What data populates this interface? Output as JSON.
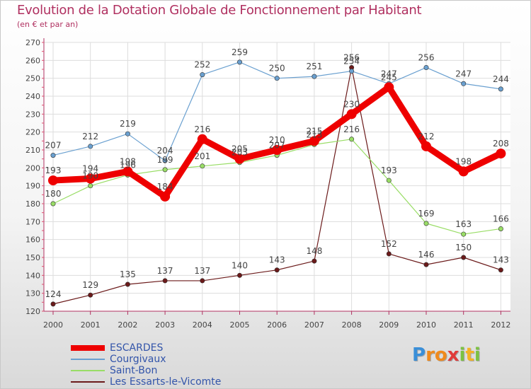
{
  "header": {
    "title": "Evolution de la Dotation Globale de Fonctionnement par Habitant",
    "subtitle": "(en € et par an)"
  },
  "logo": {
    "letters": [
      "P",
      "r",
      "o",
      "x",
      "i",
      "t",
      "i"
    ],
    "colors": [
      "#3a8fd8",
      "#f08a1c",
      "#f08a1c",
      "#e03a3a",
      "#7cc242",
      "#f5b324",
      "#7cc242"
    ]
  },
  "chart_data": {
    "type": "line",
    "title": "Evolution de la Dotation Globale de Fonctionnement par Habitant",
    "subtitle": "(en € et par an)",
    "xlabel": "",
    "ylabel": "",
    "categories": [
      "2000",
      "2001",
      "2002",
      "2003",
      "2004",
      "2005",
      "2006",
      "2007",
      "2008",
      "2009",
      "2010",
      "2011",
      "2012"
    ],
    "ylim": [
      120,
      270
    ],
    "yticks": [
      120,
      130,
      140,
      150,
      160,
      170,
      180,
      190,
      200,
      210,
      220,
      230,
      240,
      250,
      260,
      270
    ],
    "grid": true,
    "legend_position": "bottom-left",
    "series": [
      {
        "name": "ESCARDES",
        "color": "#ee0000",
        "values": [
          193,
          194,
          198,
          184,
          216,
          205,
          210,
          215,
          230,
          245,
          212,
          198,
          208
        ]
      },
      {
        "name": "Courgivaux",
        "color": "#6aa0d0",
        "values": [
          207,
          212,
          219,
          204,
          252,
          259,
          250,
          251,
          254,
          247,
          256,
          247,
          244
        ]
      },
      {
        "name": "Saint-Bon",
        "color": "#99dd66",
        "values": [
          180,
          190,
          196,
          199,
          201,
          203,
          207,
          213,
          216,
          193,
          169,
          163,
          166
        ]
      },
      {
        "name": "Les Essarts-le-Vicomte",
        "color": "#6b1a1a",
        "values": [
          124,
          129,
          135,
          137,
          137,
          140,
          143,
          148,
          256,
          152,
          146,
          150,
          143
        ]
      }
    ]
  }
}
